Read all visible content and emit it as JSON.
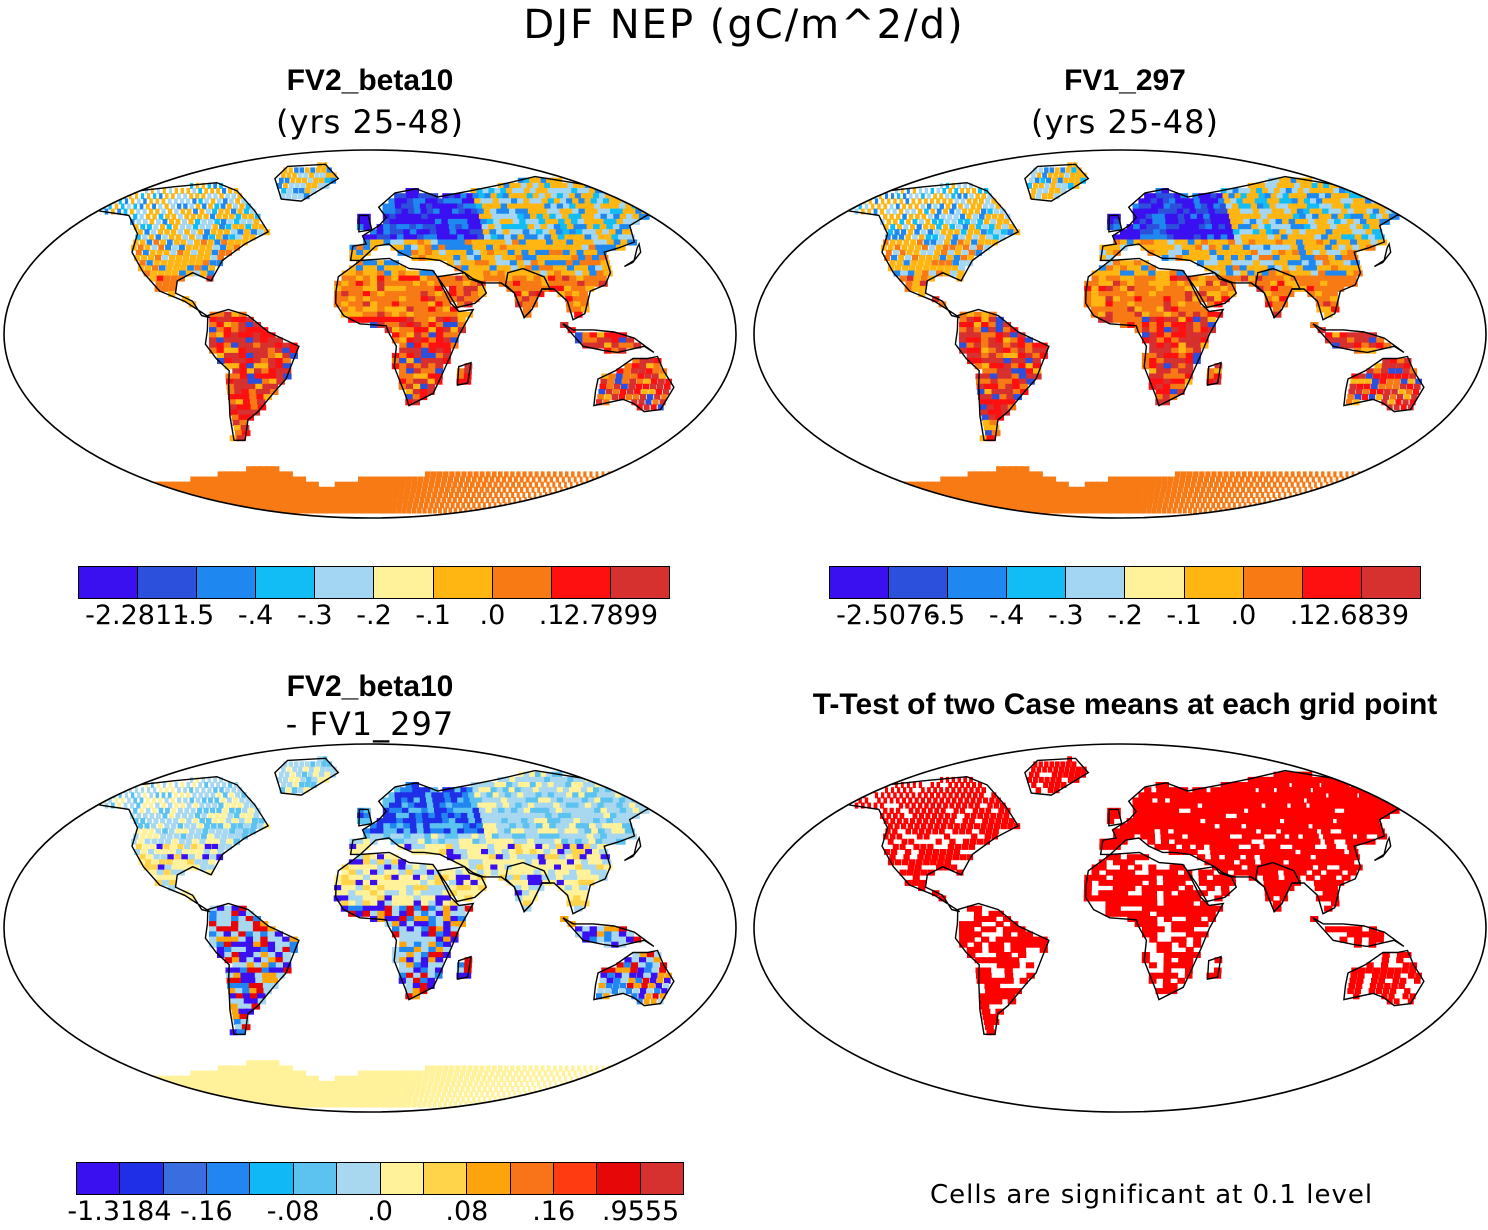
{
  "figure": {
    "title": "DJF NEP (gC/m^2/d)"
  },
  "panels": [
    {
      "id": "fv2",
      "title": "FV2_beta10",
      "subtitle": "(yrs 25-48)"
    },
    {
      "id": "fv1",
      "title": "FV1_297",
      "subtitle": "(yrs 25-48)"
    },
    {
      "id": "diff",
      "title": "FV2_beta10",
      "subtitle": "- FV1_297"
    },
    {
      "id": "ttest",
      "title": "T-Test of two Case means at each grid point",
      "subtitle": ""
    }
  ],
  "colorbars": {
    "fv2": {
      "colors": [
        "#3b10f0",
        "#2c4fdc",
        "#1e88f0",
        "#12bdf6",
        "#a3d6f2",
        "#fff29a",
        "#ffb613",
        "#f77a14",
        "#ff1010",
        "#d6302f"
      ],
      "labels": [
        "-2.2811",
        "-.5",
        "-.4",
        "-.3",
        "-.2",
        "-.1",
        ".0",
        ".1",
        "2.7899"
      ]
    },
    "fv1": {
      "colors": [
        "#3b10f0",
        "#2c4fdc",
        "#1e88f0",
        "#12bdf6",
        "#a3d6f2",
        "#fff29a",
        "#ffb613",
        "#f77a14",
        "#ff1010",
        "#d6302f"
      ],
      "labels": [
        "-2.5076",
        "-.5",
        "-.4",
        "-.3",
        "-.2",
        "-.1",
        ".0",
        ".1",
        "2.6839"
      ]
    },
    "diff": {
      "colors": [
        "#3b10f0",
        "#1f2fe8",
        "#3a6de0",
        "#2286f2",
        "#10b8f6",
        "#5cc2f0",
        "#a8d8f0",
        "#fff29a",
        "#ffd44a",
        "#fda40c",
        "#f97418",
        "#ff3b12",
        "#e60808",
        "#d6302f"
      ],
      "labels": [
        "-1.3184",
        "-.16",
        "-.08",
        ".0",
        ".08",
        ".16",
        ".9555"
      ]
    }
  },
  "note": {
    "text": "Cells are significant at 0.1 level"
  }
}
